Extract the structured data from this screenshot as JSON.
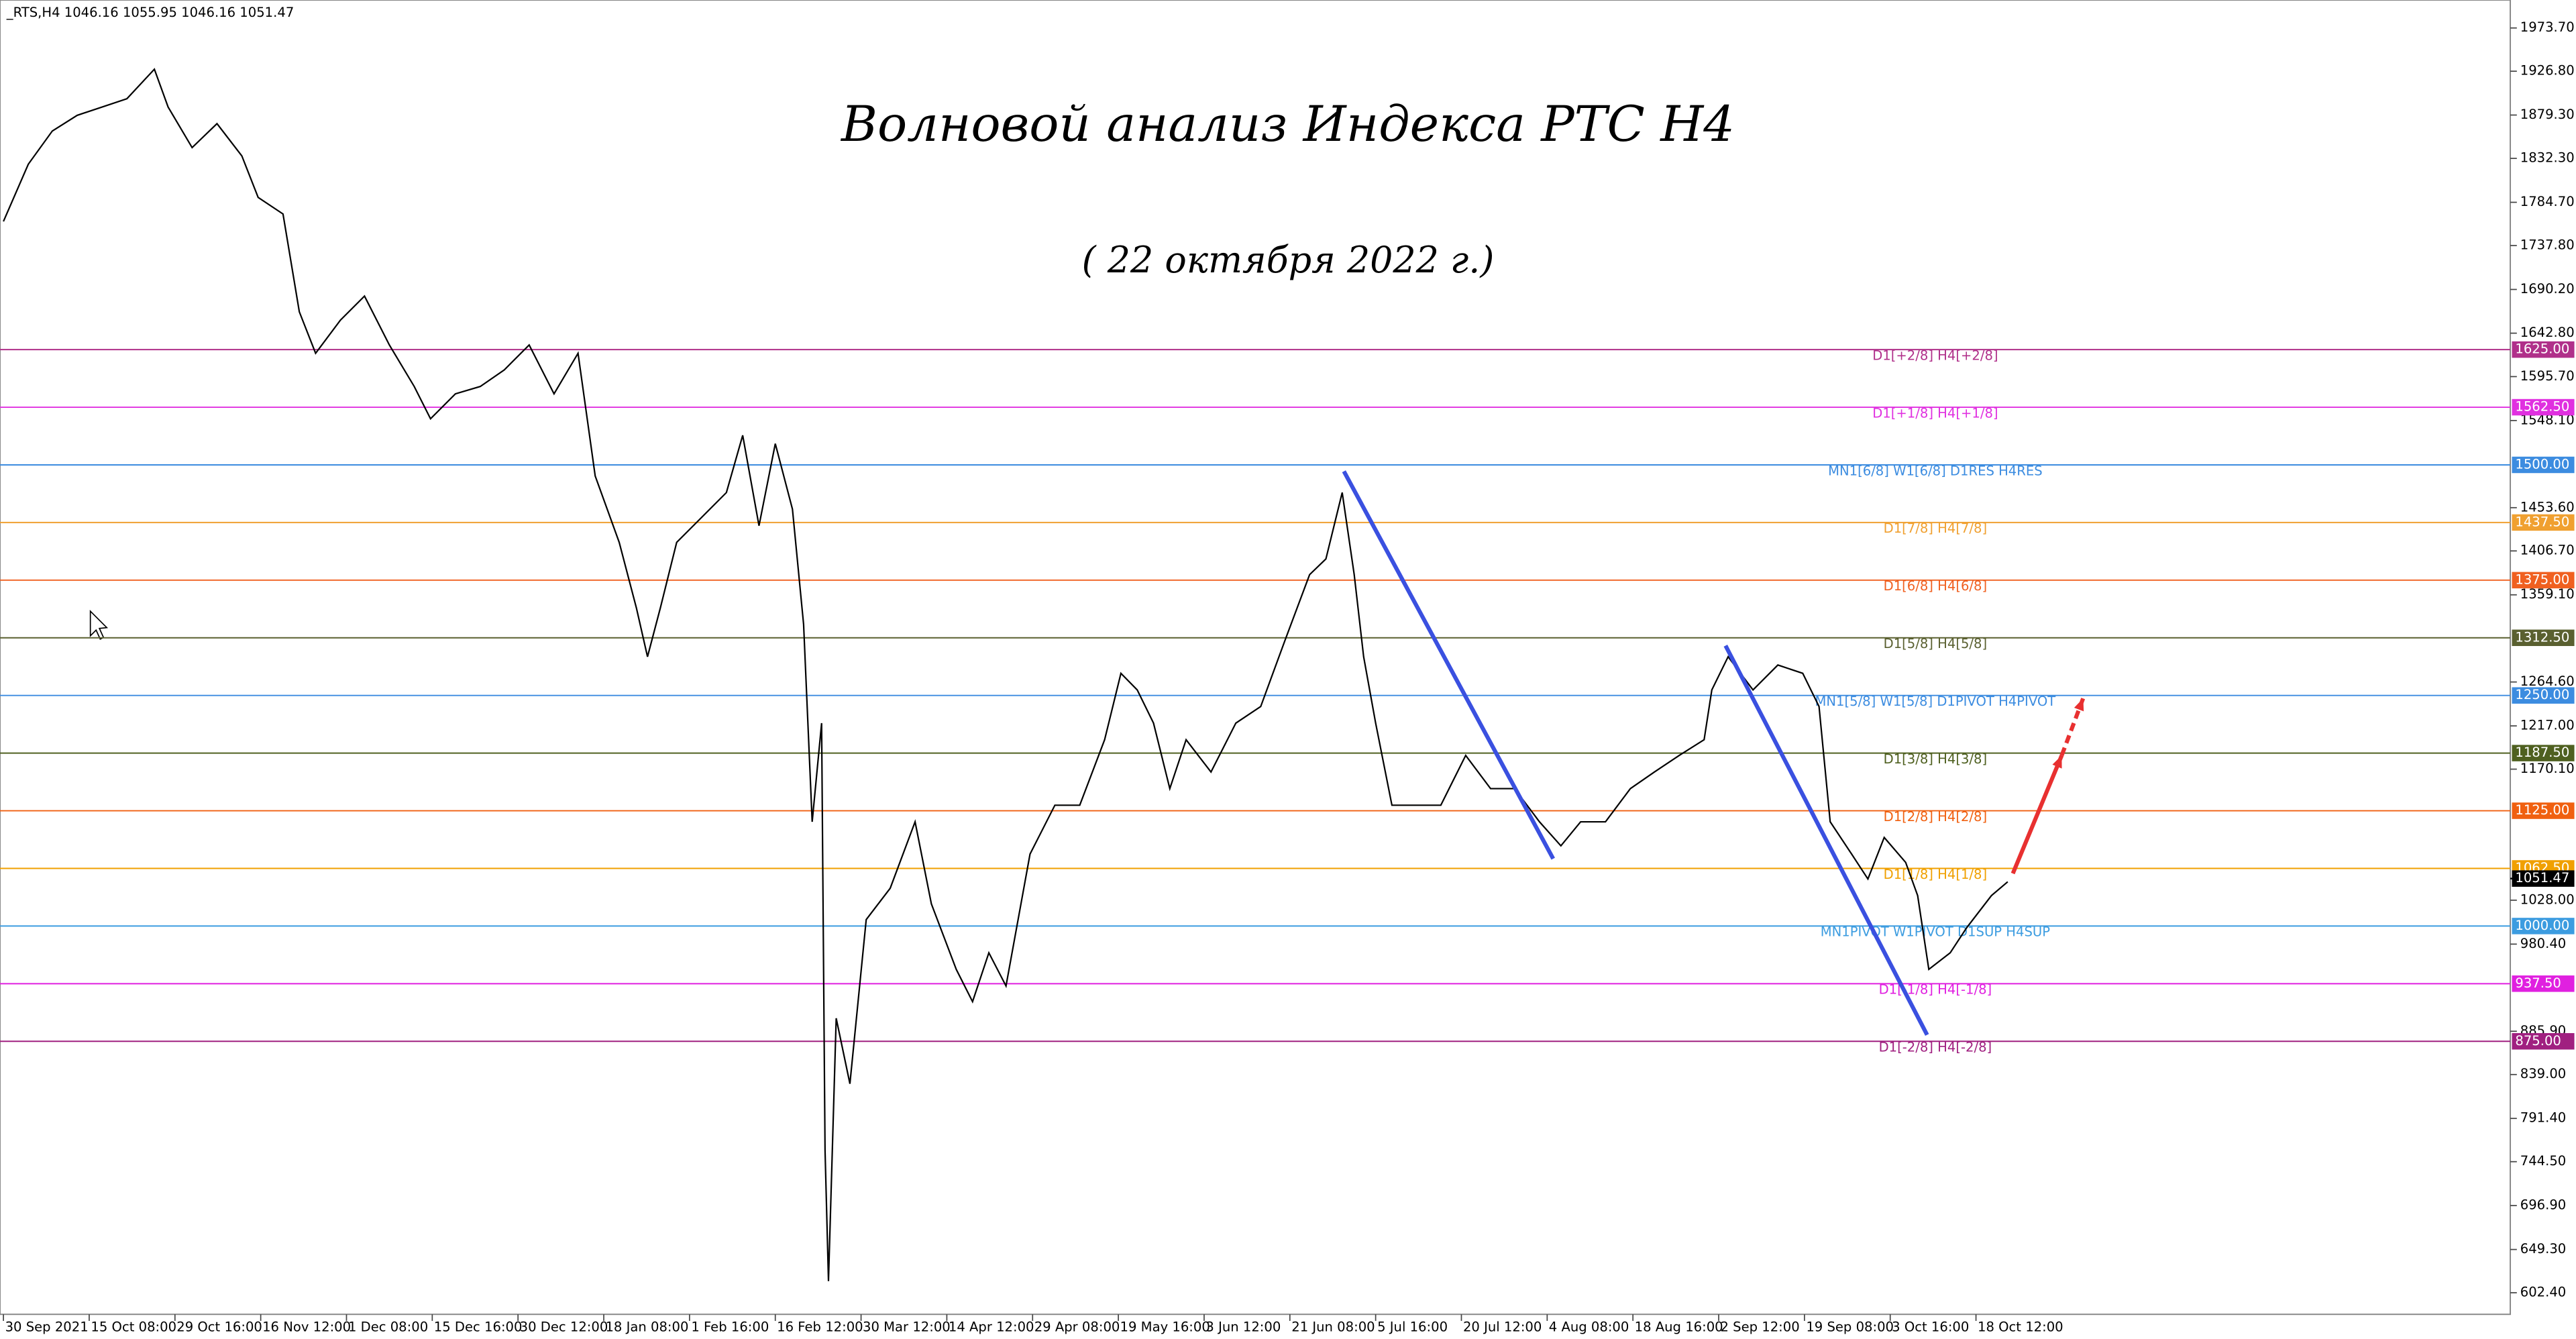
{
  "chart_data": {
    "type": "line",
    "header": "_RTS,H4  1046.16 1055.95 1046.16 1051.47",
    "title": "Волновой анализ Индекса РТС Н4",
    "subtitle": "( 22 октября 2022 г.)",
    "xlim": [
      -0.04,
      29.23
    ],
    "ylim": [
      579,
      2004
    ],
    "xticks": [
      {
        "value": 0,
        "label": "30 Sep 2021"
      },
      {
        "value": 1,
        "label": "15 Oct 08:00"
      },
      {
        "value": 2,
        "label": "29 Oct 16:00"
      },
      {
        "value": 3,
        "label": "16 Nov 12:00"
      },
      {
        "value": 4,
        "label": "1 Dec 08:00"
      },
      {
        "value": 5,
        "label": "15 Dec 16:00"
      },
      {
        "value": 6,
        "label": "30 Dec 12:00"
      },
      {
        "value": 7,
        "label": "18 Jan 08:00"
      },
      {
        "value": 8,
        "label": "1 Feb 16:00"
      },
      {
        "value": 9,
        "label": "16 Feb 12:00"
      },
      {
        "value": 10,
        "label": "30 Mar 12:00"
      },
      {
        "value": 11,
        "label": "14 Apr 12:00"
      },
      {
        "value": 12,
        "label": "29 Apr 08:00"
      },
      {
        "value": 13,
        "label": "19 May 16:00"
      },
      {
        "value": 14,
        "label": "3 Jun 12:00"
      },
      {
        "value": 15,
        "label": "21 Jun 08:00"
      },
      {
        "value": 16,
        "label": "5 Jul 16:00"
      },
      {
        "value": 17,
        "label": "20 Jul 12:00"
      },
      {
        "value": 18,
        "label": "4 Aug 08:00"
      },
      {
        "value": 19,
        "label": "18 Aug 16:00"
      },
      {
        "value": 20,
        "label": "2 Sep 12:00"
      },
      {
        "value": 21,
        "label": "19 Sep 08:00"
      },
      {
        "value": 22,
        "label": "3 Oct 16:00"
      },
      {
        "value": 23,
        "label": "18 Oct 12:00"
      }
    ],
    "yticks": [
      {
        "value": 1973.7,
        "label": "1973.70"
      },
      {
        "value": 1926.8,
        "label": "1926.80"
      },
      {
        "value": 1879.3,
        "label": "1879.30"
      },
      {
        "value": 1832.3,
        "label": "1832.30"
      },
      {
        "value": 1784.7,
        "label": "1784.70"
      },
      {
        "value": 1737.8,
        "label": "1737.80"
      },
      {
        "value": 1690.2,
        "label": "1690.20"
      },
      {
        "value": 1642.8,
        "label": "1642.80"
      },
      {
        "value": 1595.7,
        "label": "1595.70"
      },
      {
        "value": 1548.1,
        "label": "1548.10"
      },
      {
        "value": 1453.6,
        "label": "1453.60"
      },
      {
        "value": 1406.7,
        "label": "1406.70"
      },
      {
        "value": 1359.1,
        "label": "1359.10"
      },
      {
        "value": 1264.6,
        "label": "1264.60"
      },
      {
        "value": 1217,
        "label": "1217.00"
      },
      {
        "value": 1170.1,
        "label": "1170.10"
      },
      {
        "value": 1028,
        "label": "1028.00"
      },
      {
        "value": 980.4,
        "label": "980.40"
      },
      {
        "value": 885.9,
        "label": "885.90"
      },
      {
        "value": 839,
        "label": "839.00"
      },
      {
        "value": 791.4,
        "label": "791.40"
      },
      {
        "value": 744.5,
        "label": "744.50"
      },
      {
        "value": 696.9,
        "label": "696.90"
      },
      {
        "value": 649.3,
        "label": "649.30"
      },
      {
        "value": 602.4,
        "label": "602.40"
      }
    ],
    "series": [
      {
        "name": "_RTS,H4",
        "color": "#000000",
        "x": [
          0,
          0.29,
          0.57,
          0.86,
          1.15,
          1.44,
          1.76,
          1.92,
          2.2,
          2.49,
          2.78,
          2.97,
          3.26,
          3.45,
          3.64,
          3.93,
          4.21,
          4.5,
          4.79,
          4.98,
          5.27,
          5.56,
          5.84,
          6.13,
          6.42,
          6.7,
          6.9,
          7.18,
          7.38,
          7.51,
          7.66,
          7.85,
          8.14,
          8.43,
          8.62,
          8.81,
          9,
          9.2,
          9.33,
          9.43,
          9.54,
          9.58,
          9.62,
          9.71,
          9.87,
          10.06,
          10.34,
          10.63,
          10.82,
          11.11,
          11.3,
          11.49,
          11.69,
          11.97,
          12.26,
          12.55,
          12.84,
          13.03,
          13.22,
          13.41,
          13.6,
          13.79,
          14.08,
          14.37,
          14.66,
          14.94,
          15.23,
          15.42,
          15.61,
          15.75,
          15.86,
          16,
          16.19,
          16.48,
          16.76,
          17.05,
          17.34,
          17.62,
          17.91,
          18.16,
          18.39,
          18.68,
          18.97,
          19.25,
          19.54,
          19.83,
          19.92,
          20.11,
          20.4,
          20.69,
          20.98,
          21.17,
          21.3,
          21.55,
          21.74,
          21.93,
          22.18,
          22.32,
          22.45,
          22.7,
          22.89,
          23.18,
          23.37
        ],
        "values": [
          1764,
          1826,
          1862,
          1879,
          1888,
          1897,
          1929,
          1888,
          1844,
          1870,
          1835,
          1790,
          1772,
          1666,
          1621,
          1657,
          1683,
          1630,
          1585,
          1550,
          1577,
          1585,
          1603,
          1630,
          1577,
          1621,
          1488,
          1416,
          1345,
          1292,
          1345,
          1416,
          1443,
          1470,
          1532,
          1434,
          1523,
          1452,
          1327,
          1113,
          1220,
          757,
          615,
          900,
          829,
          1007,
          1041,
          1113,
          1024,
          953,
          918,
          971,
          935,
          1078,
          1131,
          1131,
          1202,
          1274,
          1256,
          1220,
          1149,
          1202,
          1167,
          1220,
          1238,
          1309,
          1381,
          1398,
          1470,
          1381,
          1292,
          1220,
          1131,
          1131,
          1131,
          1185,
          1149,
          1149,
          1113,
          1087,
          1113,
          1113,
          1149,
          1167,
          1185,
          1202,
          1256,
          1292,
          1256,
          1283,
          1274,
          1238,
          1113,
          1078,
          1051,
          1096,
          1069,
          1033,
          953,
          971,
          998,
          1033,
          1048
        ]
      }
    ],
    "levels": [
      {
        "value": 1625,
        "label": "1625.00",
        "text": "D1[+2/8] H4[+2/8]",
        "color": "#b0308a"
      },
      {
        "value": 1562.5,
        "label": "1562.50",
        "text": "D1[+1/8] H4[+1/8]",
        "color": "#e030e0"
      },
      {
        "value": 1500,
        "label": "1500.00",
        "text": "MN1[6/8] W1[6/8] D1RES H4RES",
        "color": "#3c8ce0"
      },
      {
        "value": 1437.5,
        "label": "1437.50",
        "text": "D1[7/8] H4[7/8]",
        "color": "#f0a030"
      },
      {
        "value": 1375,
        "label": "1375.00",
        "text": "D1[6/8] H4[6/8]",
        "color": "#f06020"
      },
      {
        "value": 1312.5,
        "label": "1312.50",
        "text": "D1[5/8] H4[5/8]",
        "color": "#5a6030"
      },
      {
        "value": 1250,
        "label": "1250.00",
        "text": "MN1[5/8] W1[5/8] D1PIVOT H4PIVOT",
        "color": "#3c8ce0"
      },
      {
        "value": 1187.5,
        "label": "1187.50",
        "text": "D1[3/8] H4[3/8]",
        "color": "#4f6020"
      },
      {
        "value": 1125,
        "label": "1125.00",
        "text": "D1[2/8] H4[2/8]",
        "color": "#f06010"
      },
      {
        "value": 1062.5,
        "label": "1062.50",
        "text": "D1[1/8] H4[1/8]",
        "color": "#f0a000"
      },
      {
        "value": 1000,
        "label": "1000.00",
        "text": "MN1PIVOT W1PIVOT D1SUP H4SUP",
        "color": "#3c9ce0"
      },
      {
        "value": 937.5,
        "label": "937.50",
        "text": "D1[-1/8] H4[-1/8]",
        "color": "#e020e0"
      },
      {
        "value": 875,
        "label": "875.00",
        "text": "D1[-2/8] H4[-2/8]",
        "color": "#a02080"
      }
    ],
    "current_price": {
      "value": 1051.47,
      "label": "1051.47"
    },
    "trend_lines": [
      {
        "x": [
          15.63,
          18.07
        ],
        "values": [
          1493,
          1073
        ],
        "color": "#3a50e0",
        "dashed": false
      },
      {
        "x": [
          20.08,
          22.43
        ],
        "values": [
          1304,
          882
        ],
        "color": "#3a50e0",
        "dashed": false
      },
      {
        "x": [
          23.43,
          24.0
        ],
        "values": [
          1057,
          1185
        ],
        "color": "#e83030",
        "dashed": false
      },
      {
        "x": [
          24.0,
          24.25
        ],
        "values": [
          1185,
          1247
        ],
        "color": "#e83030",
        "dashed": true
      }
    ],
    "grid": false
  }
}
